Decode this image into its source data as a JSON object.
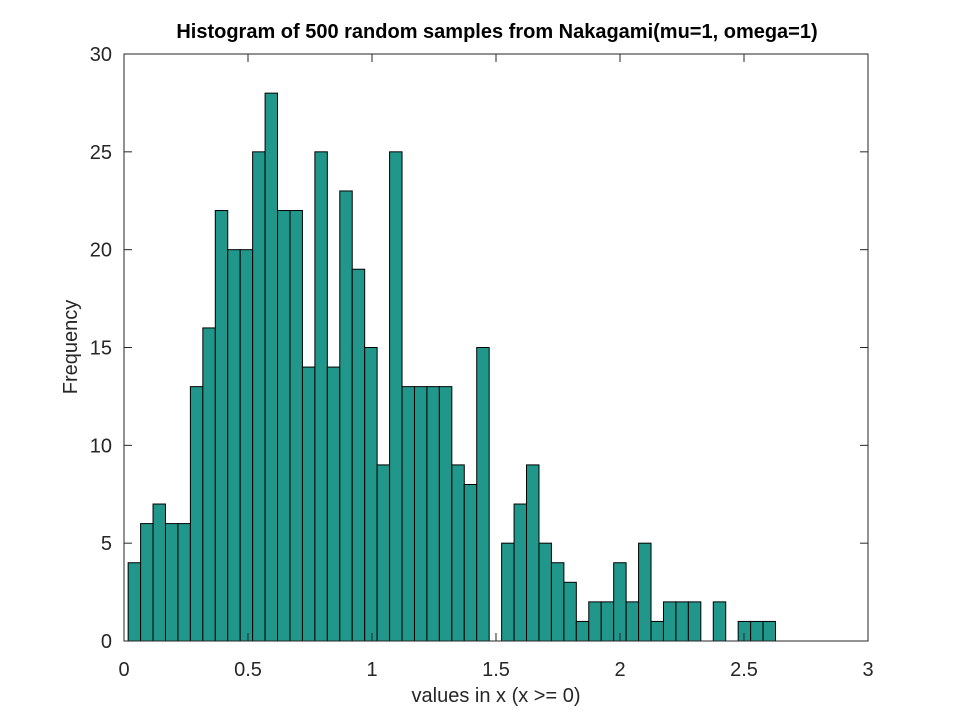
{
  "chart_data": {
    "type": "bar",
    "title": "Histogram of 500 random samples from Nakagami(mu=1, omega=1)",
    "xlabel": "values in x (x >= 0)",
    "ylabel": "Frequency",
    "xlim": [
      0,
      3
    ],
    "ylim": [
      0,
      30
    ],
    "xticks": [
      "0",
      "0.5",
      "1",
      "1.5",
      "2",
      "2.5",
      "3"
    ],
    "yticks": [
      "0",
      "5",
      "10",
      "15",
      "20",
      "25",
      "30"
    ],
    "grid": false,
    "bar_color": "#21968A",
    "edge_color": "#000000",
    "bin_start": 0.0167,
    "bin_width": 0.0502,
    "values": [
      4,
      6,
      7,
      6,
      6,
      13,
      16,
      22,
      20,
      20,
      25,
      28,
      22,
      22,
      14,
      25,
      14,
      23,
      19,
      15,
      9,
      25,
      13,
      13,
      13,
      13,
      9,
      8,
      15,
      0,
      5,
      7,
      9,
      5,
      4,
      3,
      1,
      2,
      2,
      4,
      2,
      5,
      1,
      2,
      2,
      2,
      0,
      2,
      0,
      1,
      1,
      1
    ]
  }
}
